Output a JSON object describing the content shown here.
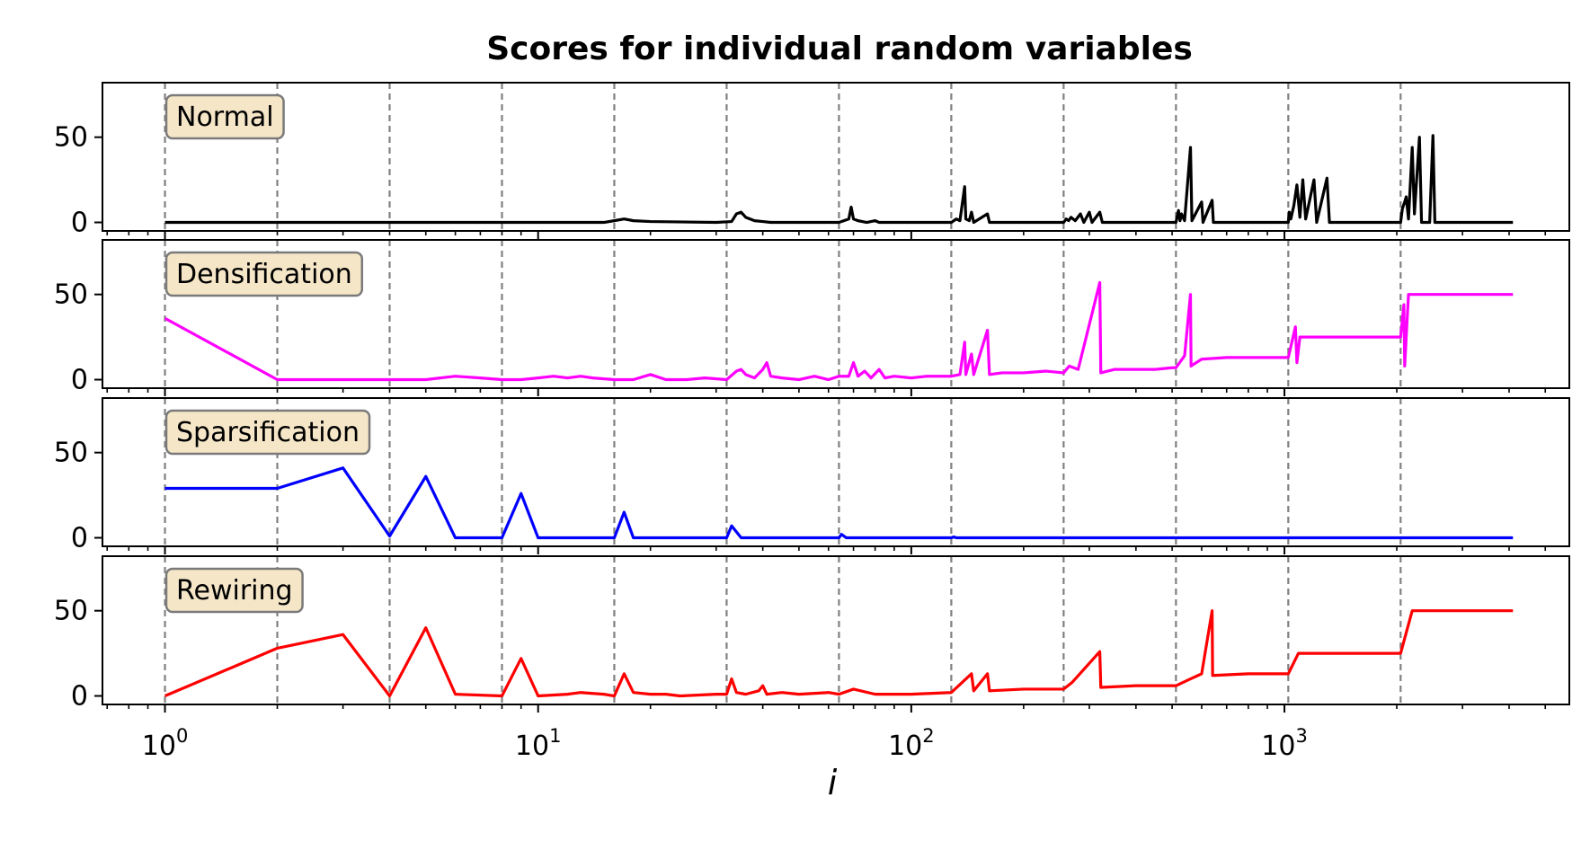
{
  "chart_data": {
    "type": "line",
    "title": "Scores for individual random variables",
    "xlabel": "i",
    "xscale": "log",
    "xlim": [
      0.68,
      5800
    ],
    "ylim": [
      -5,
      82
    ],
    "x_ticks": [
      {
        "value": 1,
        "base": "10",
        "exp": "0"
      },
      {
        "value": 10,
        "base": "10",
        "exp": "1"
      },
      {
        "value": 100,
        "base": "10",
        "exp": "2"
      },
      {
        "value": 1000,
        "base": "10",
        "exp": "3"
      }
    ],
    "y_ticks": [
      0,
      50
    ],
    "vlines": [
      1,
      2,
      4,
      8,
      16,
      32,
      64,
      128,
      256,
      512,
      1024,
      2048
    ],
    "grid": "dashed vertical lines at powers of 2",
    "label_box_color": "#f5e6c8",
    "panels": [
      {
        "label": "Normal",
        "color": "#000000",
        "points": [
          [
            1,
            0
          ],
          [
            15,
            0
          ],
          [
            16,
            1
          ],
          [
            17,
            2
          ],
          [
            18,
            1
          ],
          [
            20,
            0.5
          ],
          [
            30,
            0
          ],
          [
            33,
            0.5
          ],
          [
            34,
            5
          ],
          [
            35,
            6
          ],
          [
            36,
            3
          ],
          [
            38,
            1
          ],
          [
            40,
            0.5
          ],
          [
            42,
            0
          ],
          [
            64,
            0
          ],
          [
            68,
            2
          ],
          [
            69,
            9
          ],
          [
            70,
            2
          ],
          [
            72,
            1
          ],
          [
            76,
            0
          ],
          [
            80,
            1
          ],
          [
            82,
            0
          ],
          [
            128,
            0
          ],
          [
            132,
            2
          ],
          [
            135,
            1
          ],
          [
            139,
            21
          ],
          [
            140,
            2
          ],
          [
            143,
            1
          ],
          [
            145,
            6
          ],
          [
            147,
            0
          ],
          [
            160,
            5
          ],
          [
            162,
            0
          ],
          [
            256,
            0
          ],
          [
            260,
            2
          ],
          [
            264,
            1
          ],
          [
            268,
            3
          ],
          [
            275,
            1
          ],
          [
            284,
            5
          ],
          [
            290,
            0
          ],
          [
            300,
            6
          ],
          [
            305,
            0
          ],
          [
            320,
            6
          ],
          [
            325,
            0
          ],
          [
            512,
            0
          ],
          [
            520,
            7
          ],
          [
            525,
            1
          ],
          [
            530,
            5
          ],
          [
            540,
            1
          ],
          [
            560,
            44
          ],
          [
            565,
            1
          ],
          [
            600,
            12
          ],
          [
            605,
            0
          ],
          [
            640,
            13
          ],
          [
            645,
            0
          ],
          [
            1024,
            0
          ],
          [
            1030,
            6
          ],
          [
            1040,
            2
          ],
          [
            1060,
            10
          ],
          [
            1080,
            22
          ],
          [
            1100,
            3
          ],
          [
            1120,
            25
          ],
          [
            1140,
            2
          ],
          [
            1200,
            25
          ],
          [
            1220,
            0
          ],
          [
            1300,
            26
          ],
          [
            1320,
            0
          ],
          [
            2048,
            0
          ],
          [
            2070,
            8
          ],
          [
            2100,
            12
          ],
          [
            2120,
            15
          ],
          [
            2150,
            2
          ],
          [
            2200,
            44
          ],
          [
            2230,
            5
          ],
          [
            2300,
            50
          ],
          [
            2330,
            0
          ],
          [
            2450,
            0
          ],
          [
            2500,
            51
          ],
          [
            2530,
            0
          ],
          [
            4096,
            0
          ]
        ]
      },
      {
        "label": "Densification",
        "color": "#ff00ff",
        "points": [
          [
            1,
            36
          ],
          [
            2,
            0
          ],
          [
            4,
            0
          ],
          [
            5,
            0
          ],
          [
            6,
            2
          ],
          [
            7,
            1
          ],
          [
            8,
            0
          ],
          [
            9,
            0
          ],
          [
            10,
            1
          ],
          [
            11,
            2
          ],
          [
            12,
            1
          ],
          [
            13,
            2
          ],
          [
            14,
            1
          ],
          [
            16,
            0
          ],
          [
            18,
            0
          ],
          [
            20,
            3
          ],
          [
            22,
            0
          ],
          [
            25,
            0
          ],
          [
            28,
            1
          ],
          [
            32,
            0
          ],
          [
            34,
            5
          ],
          [
            35,
            6
          ],
          [
            36,
            3
          ],
          [
            38,
            1
          ],
          [
            40,
            6
          ],
          [
            41,
            10
          ],
          [
            42,
            2
          ],
          [
            45,
            1
          ],
          [
            50,
            0
          ],
          [
            55,
            2
          ],
          [
            60,
            0
          ],
          [
            64,
            2
          ],
          [
            68,
            2
          ],
          [
            70,
            10
          ],
          [
            72,
            2
          ],
          [
            75,
            5
          ],
          [
            78,
            1
          ],
          [
            82,
            6
          ],
          [
            85,
            1
          ],
          [
            90,
            2
          ],
          [
            100,
            1
          ],
          [
            110,
            2
          ],
          [
            128,
            2
          ],
          [
            135,
            3
          ],
          [
            139,
            22
          ],
          [
            140,
            3
          ],
          [
            145,
            15
          ],
          [
            147,
            3
          ],
          [
            160,
            29
          ],
          [
            162,
            3
          ],
          [
            175,
            4
          ],
          [
            200,
            4
          ],
          [
            230,
            5
          ],
          [
            256,
            4
          ],
          [
            265,
            8
          ],
          [
            280,
            6
          ],
          [
            320,
            57
          ],
          [
            322,
            4
          ],
          [
            350,
            6
          ],
          [
            400,
            6
          ],
          [
            450,
            6
          ],
          [
            500,
            7
          ],
          [
            512,
            7
          ],
          [
            540,
            14
          ],
          [
            560,
            50
          ],
          [
            562,
            8
          ],
          [
            600,
            12
          ],
          [
            700,
            13
          ],
          [
            800,
            13
          ],
          [
            1024,
            13
          ],
          [
            1070,
            31
          ],
          [
            1080,
            10
          ],
          [
            1100,
            25
          ],
          [
            1200,
            25
          ],
          [
            1500,
            25
          ],
          [
            1800,
            25
          ],
          [
            2048,
            25
          ],
          [
            2090,
            44
          ],
          [
            2100,
            8
          ],
          [
            2150,
            50
          ],
          [
            2300,
            50
          ],
          [
            2800,
            50
          ],
          [
            3500,
            50
          ],
          [
            4096,
            50
          ]
        ]
      },
      {
        "label": "Sparsification",
        "color": "#0000ff",
        "points": [
          [
            1,
            29
          ],
          [
            2,
            29
          ],
          [
            3,
            41
          ],
          [
            4,
            1
          ],
          [
            5,
            36
          ],
          [
            6,
            0
          ],
          [
            7,
            0
          ],
          [
            8,
            0
          ],
          [
            9,
            26
          ],
          [
            10,
            0
          ],
          [
            16,
            0
          ],
          [
            17,
            15
          ],
          [
            18,
            0
          ],
          [
            32,
            0
          ],
          [
            33,
            7
          ],
          [
            35,
            0
          ],
          [
            64,
            0
          ],
          [
            65,
            2
          ],
          [
            67,
            0
          ],
          [
            128,
            0
          ],
          [
            130,
            0.5
          ],
          [
            132,
            0
          ],
          [
            4096,
            0
          ]
        ]
      },
      {
        "label": "Rewiring",
        "color": "#ff0000",
        "points": [
          [
            1,
            0
          ],
          [
            2,
            28
          ],
          [
            3,
            36
          ],
          [
            4,
            0
          ],
          [
            5,
            40
          ],
          [
            6,
            1
          ],
          [
            8,
            0
          ],
          [
            9,
            22
          ],
          [
            10,
            0
          ],
          [
            12,
            1
          ],
          [
            13,
            2
          ],
          [
            15,
            1
          ],
          [
            16,
            0
          ],
          [
            17,
            13
          ],
          [
            18,
            2
          ],
          [
            20,
            1
          ],
          [
            22,
            1
          ],
          [
            24,
            0
          ],
          [
            30,
            1
          ],
          [
            32,
            1
          ],
          [
            33,
            10
          ],
          [
            34,
            2
          ],
          [
            36,
            1
          ],
          [
            39,
            3
          ],
          [
            40,
            6
          ],
          [
            41,
            1
          ],
          [
            45,
            2
          ],
          [
            50,
            1
          ],
          [
            60,
            2
          ],
          [
            64,
            1
          ],
          [
            70,
            4
          ],
          [
            80,
            1
          ],
          [
            100,
            1
          ],
          [
            128,
            2
          ],
          [
            145,
            13
          ],
          [
            147,
            3
          ],
          [
            160,
            13
          ],
          [
            162,
            3
          ],
          [
            200,
            4
          ],
          [
            256,
            4
          ],
          [
            270,
            8
          ],
          [
            320,
            26
          ],
          [
            322,
            5
          ],
          [
            400,
            6
          ],
          [
            512,
            6
          ],
          [
            560,
            10
          ],
          [
            600,
            13
          ],
          [
            640,
            50
          ],
          [
            642,
            12
          ],
          [
            800,
            13
          ],
          [
            1024,
            13
          ],
          [
            1090,
            25
          ],
          [
            1200,
            25
          ],
          [
            1500,
            25
          ],
          [
            2048,
            25
          ],
          [
            2200,
            50
          ],
          [
            2800,
            50
          ],
          [
            3500,
            50
          ],
          [
            4096,
            50
          ]
        ]
      }
    ]
  }
}
